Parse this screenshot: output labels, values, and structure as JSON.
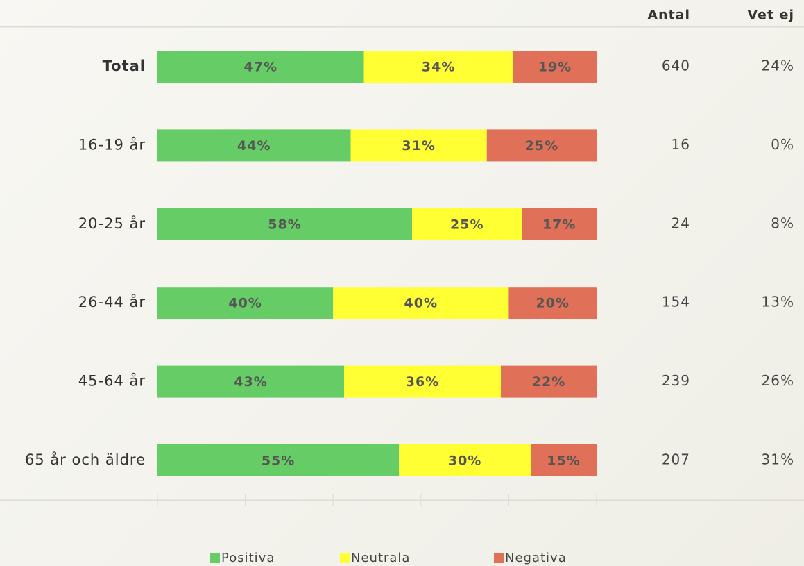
{
  "chart_data": {
    "type": "stacked-bar-horizontal",
    "categories": [
      "Total",
      "16-19 år",
      "20-25 år",
      "26-44 år",
      "45-64 år",
      "65 år och äldre"
    ],
    "series": [
      {
        "name": "Positiva",
        "color": "#66cc66",
        "values": [
          47,
          44,
          58,
          40,
          42.5,
          55
        ],
        "value_labels": [
          "47%",
          "44%",
          "58%",
          "40%",
          "43%",
          "55%"
        ]
      },
      {
        "name": "Neutrala",
        "color": "#ffff33",
        "values": [
          34,
          31,
          25,
          40,
          35.7,
          30
        ],
        "value_labels": [
          "34%",
          "31%",
          "25%",
          "40%",
          "36%",
          "30%"
        ]
      },
      {
        "name": "Negativa",
        "color": "#e07058",
        "values": [
          19,
          25,
          17,
          20,
          21.8,
          15
        ],
        "value_labels": [
          "19%",
          "25%",
          "17%",
          "20%",
          "22%",
          "15%"
        ]
      }
    ],
    "xlim": [
      0,
      100
    ],
    "xticks": [
      0,
      20,
      40,
      60,
      80,
      100
    ],
    "columns": [
      {
        "header": "Antal",
        "values": [
          "640",
          "16",
          "24",
          "154",
          "239",
          "207"
        ]
      },
      {
        "header": "Vet ej",
        "values": [
          "24%",
          "0%",
          "8%",
          "13%",
          "26%",
          "31%"
        ]
      }
    ]
  }
}
